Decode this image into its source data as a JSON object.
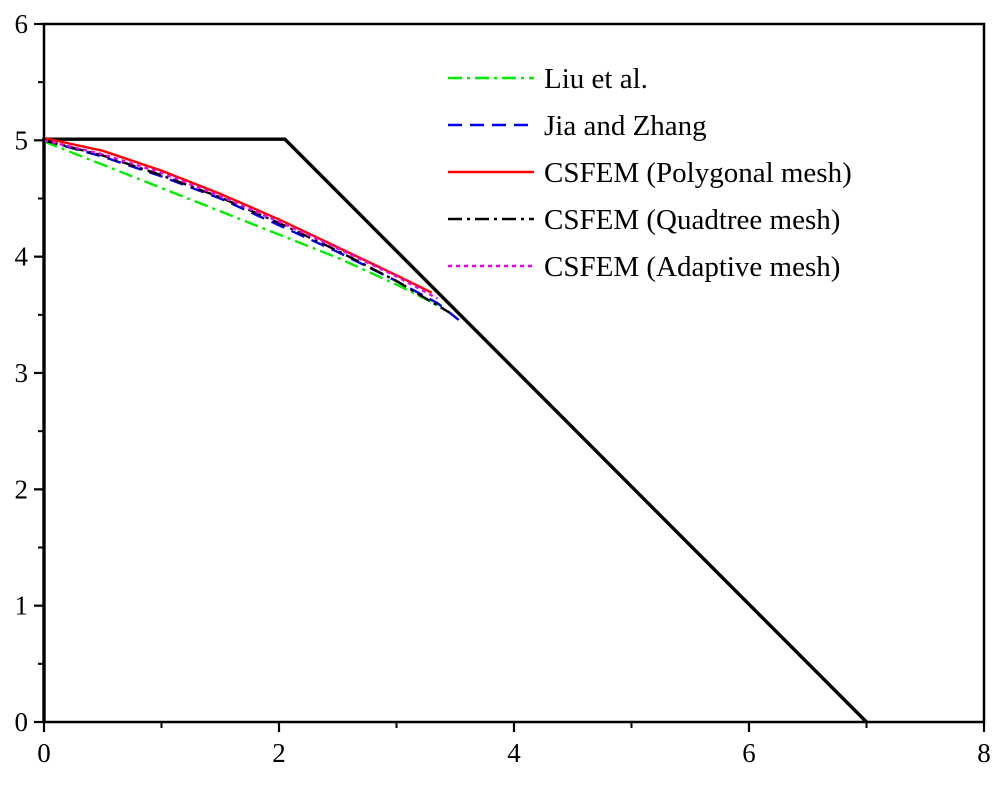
{
  "chart_data": {
    "type": "line",
    "title": "",
    "xlabel": "",
    "ylabel": "",
    "xlim": [
      0,
      8
    ],
    "ylim": [
      0,
      6
    ],
    "xticks": [
      0,
      2,
      4,
      6,
      8
    ],
    "yticks": [
      0,
      1,
      2,
      3,
      4,
      5,
      6
    ],
    "xtick_labels": [
      "0",
      "2",
      "4",
      "6",
      "8"
    ],
    "ytick_labels": [
      "0",
      "1",
      "2",
      "3",
      "4",
      "5",
      "6"
    ],
    "grid": false,
    "legend_position": "top-right",
    "outline": {
      "color": "#000000",
      "x": [
        0,
        0,
        2.05,
        7.0
      ],
      "y": [
        0,
        5.01,
        5.01,
        0
      ]
    },
    "series": [
      {
        "name": "Liu et al.",
        "color": "#00ee00",
        "dash": "dash-dot",
        "x": [
          0,
          0.5,
          1.0,
          1.5,
          2.0,
          2.5,
          3.0,
          3.4
        ],
        "y": [
          4.99,
          4.79,
          4.59,
          4.39,
          4.19,
          3.99,
          3.76,
          3.56
        ]
      },
      {
        "name": "Jia and Zhang",
        "color": "#0000ee",
        "dash": "dash",
        "x": [
          0,
          0.5,
          1.0,
          1.5,
          2.0,
          2.5,
          3.0,
          3.35,
          3.55
        ],
        "y": [
          5.0,
          4.86,
          4.69,
          4.5,
          4.27,
          4.04,
          3.79,
          3.6,
          3.44
        ]
      },
      {
        "name": "CSFEM (Polygonal mesh)",
        "color": "#ff0000",
        "dash": "solid",
        "x": [
          0,
          0.5,
          1.0,
          1.5,
          2.0,
          2.5,
          3.0,
          3.3
        ],
        "y": [
          5.02,
          4.91,
          4.74,
          4.54,
          4.32,
          4.08,
          3.84,
          3.69
        ]
      },
      {
        "name": "CSFEM (Quadtree mesh)",
        "color": "#000000",
        "dash": "dash-dot",
        "x": [
          0,
          0.5,
          1.0,
          1.5,
          2.0,
          2.5,
          3.0,
          3.45
        ],
        "y": [
          5.0,
          4.87,
          4.7,
          4.51,
          4.29,
          4.05,
          3.79,
          3.52
        ]
      },
      {
        "name": "CSFEM (Adaptive mesh)",
        "color": "#ee00ee",
        "dash": "dot",
        "x": [
          0,
          0.5,
          1.0,
          1.5,
          2.0,
          2.5,
          3.0,
          3.35
        ],
        "y": [
          5.0,
          4.88,
          4.72,
          4.52,
          4.3,
          4.07,
          3.83,
          3.64
        ]
      }
    ]
  }
}
